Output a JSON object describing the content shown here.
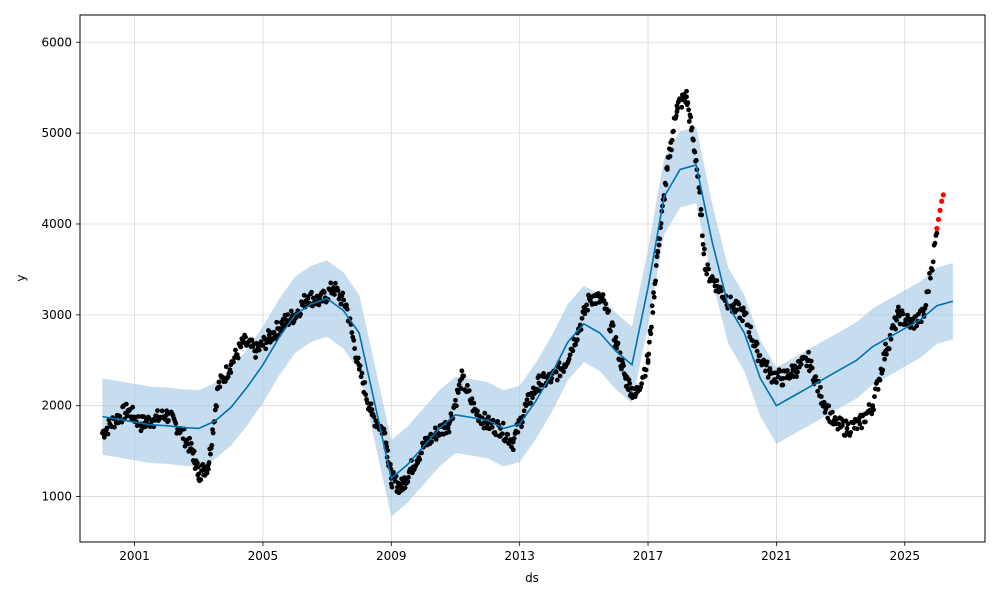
{
  "chart_data": {
    "type": "line",
    "title": "",
    "xlabel": "ds",
    "ylabel": "y",
    "xlim": [
      1999.3,
      2027.5
    ],
    "ylim": [
      500,
      6300
    ],
    "x_ticks": [
      2001,
      2005,
      2009,
      2013,
      2017,
      2021,
      2025
    ],
    "x_tick_labels": [
      "2001",
      "2005",
      "2009",
      "2013",
      "2017",
      "2021",
      "2025"
    ],
    "y_ticks": [
      1000,
      2000,
      3000,
      4000,
      5000,
      6000
    ],
    "y_tick_labels": [
      "1000",
      "2000",
      "3000",
      "4000",
      "5000",
      "6000"
    ],
    "grid": true,
    "colors": {
      "observed": "#000000",
      "forecast": "#0072B2",
      "interval": "#9FC6E3",
      "recent": "#FF0000"
    },
    "uncertainty_halfwidth": 420,
    "series": [
      {
        "role": "forecast",
        "x": [
          2000.0,
          2000.5,
          2001.0,
          2001.5,
          2002.0,
          2002.5,
          2003.0,
          2003.5,
          2004.0,
          2004.5,
          2005.0,
          2005.5,
          2006.0,
          2006.5,
          2007.0,
          2007.5,
          2008.0,
          2008.5,
          2009.0,
          2009.5,
          2010.0,
          2010.5,
          2011.0,
          2011.5,
          2012.0,
          2012.5,
          2013.0,
          2013.5,
          2014.0,
          2014.5,
          2015.0,
          2015.5,
          2016.0,
          2016.5,
          2017.0,
          2017.5,
          2018.0,
          2018.5,
          2019.0,
          2019.5,
          2020.0,
          2020.5,
          2021.0,
          2021.5,
          2022.0,
          2022.5,
          2023.0,
          2023.5,
          2024.0,
          2024.5,
          2025.0,
          2025.5,
          2026.0,
          2026.5
        ],
        "y": [
          1880,
          1850,
          1820,
          1790,
          1780,
          1760,
          1750,
          1830,
          1980,
          2200,
          2450,
          2750,
          3000,
          3120,
          3180,
          3050,
          2800,
          2000,
          1200,
          1350,
          1550,
          1750,
          1900,
          1870,
          1840,
          1750,
          1800,
          2050,
          2350,
          2700,
          2900,
          2800,
          2600,
          2450,
          3300,
          4300,
          4600,
          4650,
          3800,
          3100,
          2800,
          2300,
          2000,
          2100,
          2200,
          2300,
          2400,
          2500,
          2650,
          2750,
          2850,
          2950,
          3100,
          3150
        ]
      },
      {
        "role": "observed",
        "x": [
          2000.0,
          2000.4,
          2000.8,
          2001.2,
          2001.6,
          2002.0,
          2002.4,
          2002.8,
          2003.0,
          2003.3,
          2003.6,
          2004.0,
          2004.4,
          2004.8,
          2005.2,
          2005.6,
          2006.0,
          2006.4,
          2006.8,
          2007.2,
          2007.6,
          2008.0,
          2008.4,
          2008.8,
          2009.0,
          2009.3,
          2009.6,
          2010.0,
          2010.4,
          2010.8,
          2011.2,
          2011.6,
          2012.0,
          2012.4,
          2012.8,
          2013.2,
          2013.6,
          2014.0,
          2014.4,
          2014.8,
          2015.2,
          2015.6,
          2016.0,
          2016.3,
          2016.6,
          2017.0,
          2017.3,
          2017.6,
          2017.9,
          2018.2,
          2018.5,
          2018.8,
          2019.2,
          2019.6,
          2020.0,
          2020.4,
          2020.8,
          2021.2,
          2021.6,
          2022.0,
          2022.4,
          2022.8,
          2023.2,
          2023.6,
          2024.0,
          2024.4,
          2024.8,
          2025.2,
          2025.6,
          2026.0
        ],
        "y": [
          1700,
          1850,
          1950,
          1800,
          1850,
          1900,
          1750,
          1500,
          1250,
          1350,
          2200,
          2450,
          2700,
          2600,
          2750,
          2900,
          3000,
          3200,
          3150,
          3300,
          3100,
          2400,
          1900,
          1700,
          1200,
          1100,
          1300,
          1550,
          1700,
          1800,
          2300,
          1950,
          1800,
          1750,
          1600,
          2000,
          2250,
          2300,
          2450,
          2800,
          3200,
          3150,
          2700,
          2300,
          2100,
          2500,
          3700,
          4600,
          5300,
          5400,
          4700,
          3500,
          3300,
          3100,
          3000,
          2600,
          2350,
          2300,
          2400,
          2500,
          2100,
          1800,
          1750,
          1800,
          2000,
          2600,
          3000,
          2900,
          3000,
          3900
        ]
      },
      {
        "role": "recent",
        "x": [
          2026.0,
          2026.05,
          2026.1,
          2026.15,
          2026.2
        ],
        "y": [
          3950,
          4050,
          4150,
          4250,
          4320
        ]
      }
    ]
  }
}
